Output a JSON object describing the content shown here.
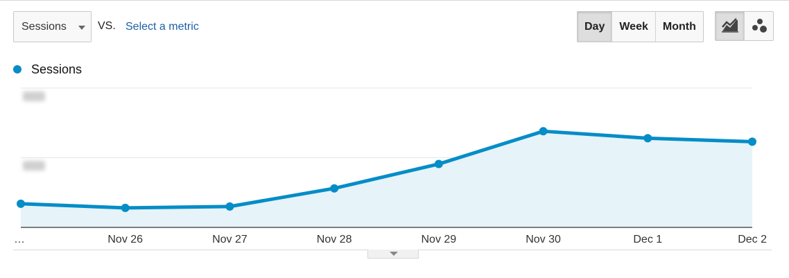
{
  "toolbar": {
    "metric_select_label": "Sessions",
    "vs_label": "VS.",
    "select_metric_link": "Select a metric",
    "period_buttons": [
      "Day",
      "Week",
      "Month"
    ],
    "active_period": "Day",
    "view_buttons": [
      {
        "icon": "line-chart-icon",
        "active": true
      },
      {
        "icon": "motion-chart-icon",
        "active": false
      }
    ]
  },
  "colors": {
    "series": "#058dc7",
    "fill": "#e6f3f9",
    "grid": "#e5e5e5",
    "axis": "#333333"
  },
  "chart_data": {
    "type": "area",
    "x": [
      "…",
      "Nov 26",
      "Nov 27",
      "Nov 28",
      "Nov 29",
      "Nov 30",
      "Dec 1",
      "Dec 2"
    ],
    "series": [
      {
        "name": "Sessions",
        "values": [
          34,
          28,
          30,
          56,
          91,
          138,
          128,
          123
        ]
      }
    ],
    "ylim": [
      0,
      200
    ],
    "y_tick_values": [
      100,
      200
    ],
    "y_tick_labels_obscured": true,
    "grid": true,
    "legend": "top-left",
    "xlabel": "",
    "ylabel": ""
  }
}
